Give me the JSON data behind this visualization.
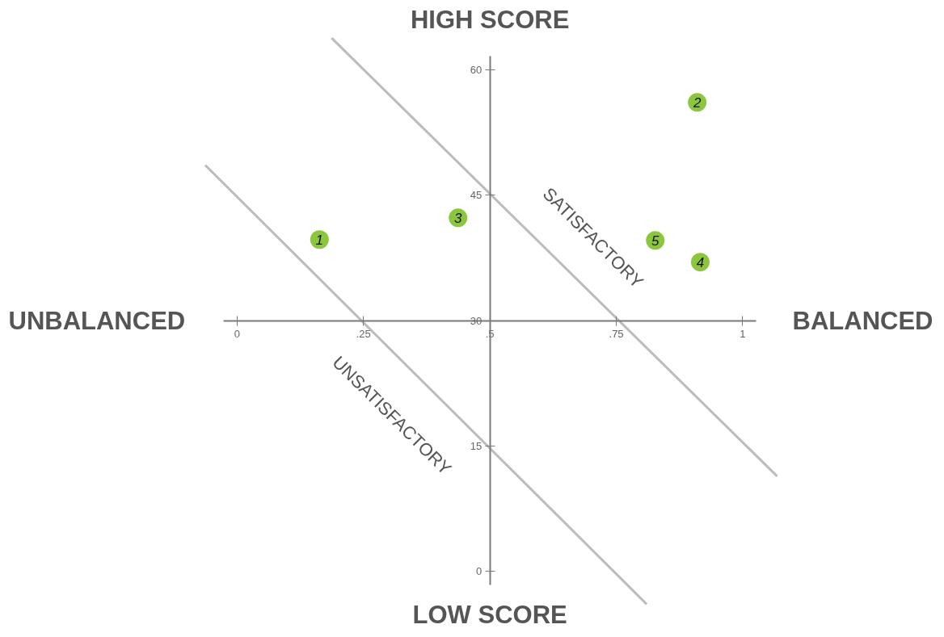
{
  "chart_data": {
    "type": "scatter",
    "xlim": [
      -0.468,
      1.386
    ],
    "ylim": [
      -7,
      68.3
    ],
    "xticks": [
      0,
      {
        "value": 0.25,
        "label": ".25"
      },
      {
        "value": 0.5,
        "label": ".5"
      },
      {
        "value": 0.75,
        "label": ".75"
      },
      1
    ],
    "yticks": [
      0,
      15,
      30,
      45,
      60
    ],
    "grid": false,
    "annotations": [
      "UNBALANCED",
      "BALANCED",
      "HIGH SCORE",
      "LOW SCORE",
      "SATISFACTORY",
      "UNSATISFACTORY"
    ],
    "series": [
      {
        "type": "line",
        "color": "#b9bdbc",
        "x": [
          0.187,
          1.068
        ],
        "values": [
          63.8,
          11.4
        ]
      },
      {
        "type": "line",
        "color": "#b9bdbc",
        "x": [
          -0.063,
          0.81
        ],
        "values": [
          48.6,
          -3.9
        ]
      },
      {
        "name": "1",
        "color": "#8cc63f",
        "marker": "circle",
        "x": [
          0.163
        ],
        "values": [
          39.7
        ]
      },
      {
        "name": "2",
        "color": "#8cc63f",
        "marker": "circle",
        "x": [
          0.91
        ],
        "values": [
          56.1
        ]
      },
      {
        "name": "3",
        "color": "#8cc63f",
        "marker": "circle",
        "x": [
          0.437
        ],
        "values": [
          42.3
        ]
      },
      {
        "name": "4",
        "color": "#8cc63f",
        "marker": "circle",
        "x": [
          0.916
        ],
        "values": [
          37.0
        ]
      },
      {
        "name": "5",
        "color": "#8cc63f",
        "marker": "circle",
        "x": [
          0.827
        ],
        "values": [
          39.6
        ]
      }
    ]
  }
}
